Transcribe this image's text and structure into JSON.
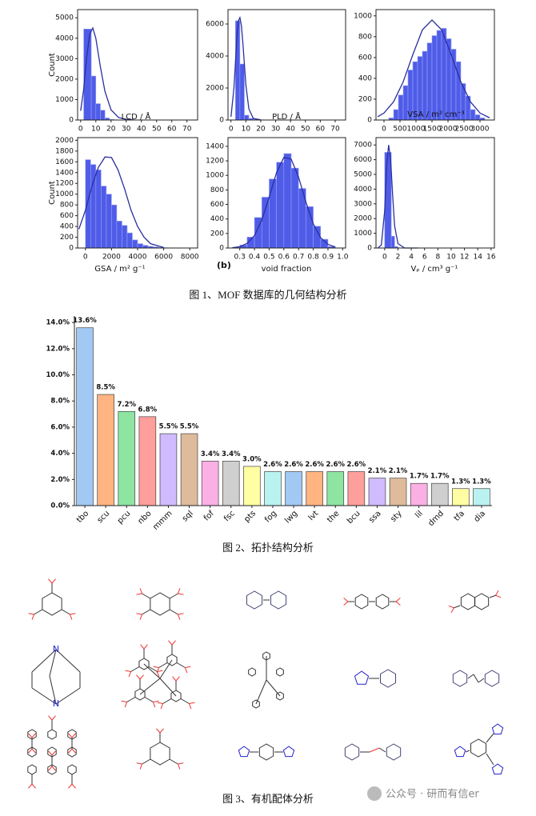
{
  "chart_data": [
    {
      "type": "histogram",
      "xlabel": "LCD / Å",
      "ylabel": "Count",
      "color": "#4f5ce8",
      "fit_color": "#2a2f9e",
      "bins": [
        2,
        7,
        10,
        13,
        16,
        19,
        22
      ],
      "counts": [
        4450,
        2150,
        800,
        480,
        100,
        30
      ],
      "fit": {
        "x": [
          0,
          2,
          4,
          6,
          8,
          10,
          13,
          16,
          20,
          25,
          30,
          35
        ],
        "y": [
          450,
          1500,
          3100,
          4200,
          4500,
          4000,
          2600,
          1400,
          500,
          120,
          30,
          5
        ]
      },
      "xlim": [
        -2,
        77
      ],
      "ylim": [
        0,
        5400
      ],
      "xticks": [
        0,
        10,
        20,
        30,
        40,
        50,
        60,
        70
      ],
      "yticks": [
        0,
        1000,
        2000,
        3000,
        4000,
        5000
      ]
    },
    {
      "type": "histogram",
      "xlabel": "PLD / Å",
      "color": "#4f5ce8",
      "fit_color": "#2a2f9e",
      "bins": [
        3,
        6,
        9,
        12,
        15,
        18,
        21
      ],
      "counts": [
        6200,
        3500,
        300,
        100,
        30,
        10
      ],
      "fit": {
        "x": [
          0,
          2,
          4,
          5,
          6,
          7,
          8,
          10,
          12,
          15,
          20
        ],
        "y": [
          200,
          2000,
          5200,
          6200,
          6400,
          5900,
          4800,
          2200,
          700,
          100,
          10
        ]
      },
      "xlim": [
        -2,
        77
      ],
      "ylim": [
        0,
        6900
      ],
      "xticks": [
        0,
        10,
        20,
        30,
        40,
        50,
        60,
        70
      ],
      "yticks": [
        0,
        2000,
        4000,
        6000
      ]
    },
    {
      "type": "histogram",
      "xlabel": "VSA / m² cm⁻³",
      "color": "#4f5ce8",
      "fit_color": "#2a2f9e",
      "bins": [
        150,
        300,
        450,
        600,
        750,
        900,
        1050,
        1200,
        1350,
        1500,
        1650,
        1800,
        1950,
        2100,
        2250,
        2400,
        2550,
        2700,
        2850,
        3000,
        3150
      ],
      "counts": [
        20,
        100,
        240,
        330,
        480,
        560,
        610,
        660,
        740,
        810,
        860,
        880,
        780,
        680,
        560,
        350,
        230,
        100,
        50,
        20
      ],
      "fit": {
        "x": [
          -200,
          0,
          300,
          600,
          900,
          1200,
          1500,
          1800,
          2100,
          2400,
          2700,
          3000,
          3300
        ],
        "y": [
          31,
          67,
          175,
          367,
          627,
          866,
          960,
          866,
          627,
          367,
          175,
          67,
          21
        ]
      },
      "xlim": [
        -250,
        3450
      ],
      "ylim": [
        0,
        1060
      ],
      "xticks": [
        0,
        500,
        1000,
        1500,
        2000,
        2500,
        3000
      ],
      "yticks": [
        0,
        200,
        400,
        600,
        800,
        1000
      ]
    },
    {
      "type": "histogram",
      "xlabel": "GSA / m² g⁻¹",
      "ylabel": "Count",
      "color": "#4f5ce8",
      "fit_color": "#2a2f9e",
      "bins": [
        0,
        400,
        800,
        1200,
        1600,
        2000,
        2400,
        2800,
        3200,
        3600,
        4000,
        4400,
        4800,
        5200,
        5600,
        6000,
        6400
      ],
      "counts": [
        1640,
        1550,
        1450,
        1150,
        1000,
        800,
        500,
        420,
        280,
        150,
        80,
        50,
        30,
        20,
        10,
        5
      ],
      "fit": {
        "x": [
          -500,
          0,
          500,
          1000,
          1500,
          2000,
          2500,
          3000,
          3500,
          4000,
          4500,
          5000,
          6000
        ],
        "y": [
          350,
          700,
          1150,
          1500,
          1690,
          1680,
          1450,
          1100,
          700,
          400,
          200,
          80,
          10
        ]
      },
      "xlim": [
        -600,
        8600
      ],
      "ylim": [
        0,
        2050
      ],
      "xticks": [
        0,
        2000,
        4000,
        6000,
        8000
      ],
      "yticks": [
        0,
        200,
        400,
        600,
        800,
        1000,
        1200,
        1400,
        1600,
        1800,
        2000
      ]
    },
    {
      "type": "histogram",
      "xlabel": "void fraction",
      "panel_label": "(b)",
      "color": "#4f5ce8",
      "fit_color": "#2a2f9e",
      "bins": [
        0.25,
        0.3,
        0.35,
        0.4,
        0.45,
        0.5,
        0.55,
        0.6,
        0.65,
        0.7,
        0.75,
        0.8,
        0.85,
        0.9,
        0.95
      ],
      "counts": [
        10,
        40,
        150,
        420,
        700,
        950,
        1180,
        1300,
        1100,
        820,
        570,
        300,
        120,
        20
      ],
      "fit": {
        "x": [
          0.25,
          0.3,
          0.35,
          0.4,
          0.45,
          0.5,
          0.55,
          0.6,
          0.65,
          0.7,
          0.75,
          0.8,
          0.85,
          0.9,
          0.95
        ],
        "y": [
          4,
          18,
          63,
          172,
          385,
          700,
          1037,
          1249,
          1224,
          975,
          632,
          333,
          142,
          50,
          14
        ]
      },
      "xlim": [
        0.22,
        1.02
      ],
      "ylim": [
        0,
        1520
      ],
      "xticks": [
        0.3,
        0.4,
        0.5,
        0.6,
        0.7,
        0.8,
        0.9,
        {
          "value": 1.0,
          "label": "1.0"
        }
      ],
      "yticks": [
        0,
        200,
        400,
        600,
        800,
        1000,
        1200,
        1400
      ]
    },
    {
      "type": "histogram",
      "xlabel": "Vₚ / cm³ g⁻¹",
      "color": "#4f5ce8",
      "fit_color": "#2a2f9e",
      "bins": [
        0,
        1,
        1.5,
        2
      ],
      "counts": [
        6500,
        800,
        100
      ],
      "fit": {
        "x": [
          -1,
          -0.5,
          0,
          0.3,
          0.6,
          0.9,
          1.2,
          1.5,
          2,
          3,
          5
        ],
        "y": [
          0,
          200,
          2500,
          5600,
          7000,
          6000,
          3600,
          1500,
          300,
          0,
          0
        ]
      },
      "xlim": [
        -1.3,
        16.5
      ],
      "ylim": [
        0,
        7500
      ],
      "xticks": [
        0,
        2,
        4,
        6,
        8,
        10,
        12,
        14,
        16
      ],
      "yticks": [
        0,
        1000,
        2000,
        3000,
        4000,
        5000,
        6000,
        7000
      ]
    },
    {
      "type": "bar",
      "categories": [
        "tbo",
        "scu",
        "pcu",
        "nbo",
        "mmm",
        "sql",
        "fof",
        "fsc",
        "pts",
        "fog",
        "lwg",
        "lvt",
        "the",
        "bcu",
        "ssa",
        "sty",
        "lil",
        "dmd",
        "tfa",
        "dia"
      ],
      "values": [
        13.6,
        8.5,
        7.2,
        6.8,
        5.5,
        5.5,
        3.4,
        3.4,
        3.0,
        2.6,
        2.6,
        2.6,
        2.6,
        2.6,
        2.1,
        2.1,
        1.7,
        1.7,
        1.3,
        1.3
      ],
      "value_labels": [
        "13.6%",
        "8.5%",
        "7.2%",
        "6.8%",
        "5.5%",
        "5.5%",
        "3.4%",
        "3.4%",
        "3.0%",
        "2.6%",
        "2.6%",
        "2.6%",
        "2.6%",
        "2.6%",
        "2.1%",
        "2.1%",
        "1.7%",
        "1.7%",
        "1.3%",
        "1.3%"
      ],
      "colors": [
        "#a1c9f4",
        "#ffb482",
        "#8de5a1",
        "#ff9f9b",
        "#d0bbff",
        "#debb9b",
        "#fab0e4",
        "#cfcfcf",
        "#fffea3",
        "#b9f2f0",
        "#a1c9f4",
        "#ffb482",
        "#8de5a1",
        "#ff9f9b",
        "#d0bbff",
        "#debb9b",
        "#fab0e4",
        "#cfcfcf",
        "#fffea3",
        "#b9f2f0"
      ],
      "ylim": [
        0,
        14.5
      ],
      "yticks": [
        {
          "value": 0,
          "label": "0.0%"
        },
        {
          "value": 2,
          "label": "2.0%"
        },
        {
          "value": 4,
          "label": "4.0%"
        },
        {
          "value": 6,
          "label": "6.0%"
        },
        {
          "value": 8,
          "label": "8.0%"
        },
        {
          "value": 10,
          "label": "10.0%"
        },
        {
          "value": 12,
          "label": "12.0%"
        },
        {
          "value": 14,
          "label": "14.0%"
        }
      ]
    }
  ],
  "captions": [
    "图 1、MOF 数据库的几何结构分析",
    "图 2、拓扑结构分析",
    "图 3、有机配体分析"
  ],
  "watermark": "公众号 · 研而有信er"
}
